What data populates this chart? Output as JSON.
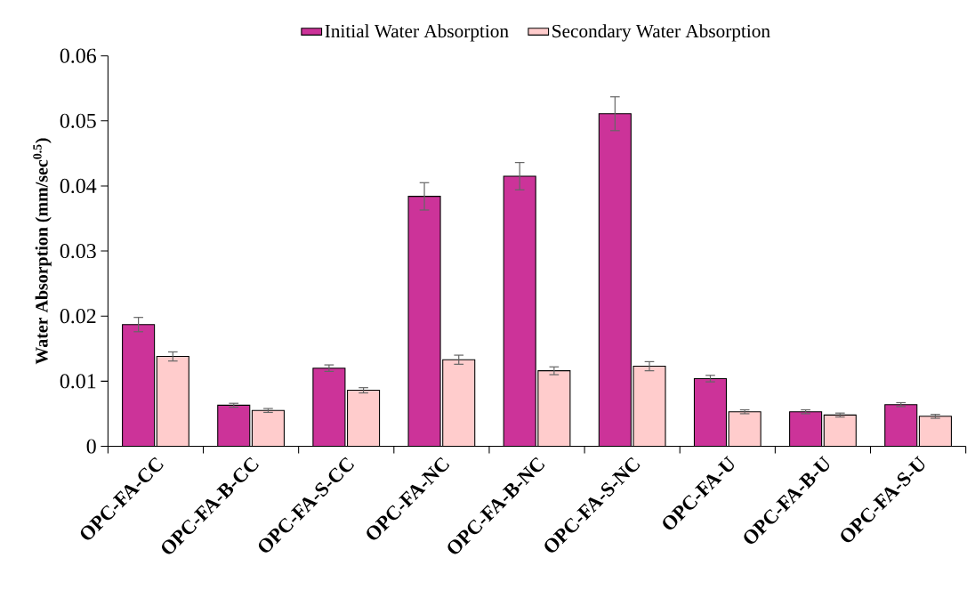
{
  "chart_data": {
    "type": "bar",
    "ylabel": "**Water Absorption (mm/sec$^{0.5}$)**",
    "categories": [
      "OPC-FA-CC",
      "OPC-FA-B-CC",
      "OPC-FA-S-CC",
      "OPC-FA-NC",
      "OPC-FA-B-NC",
      "OPC-FA-S-NC",
      "OPC-FA-U",
      "OPC-FA-B-U",
      "OPC-FA-S-U"
    ],
    "series": [
      {
        "name": "Initial Water Absorption",
        "color": "#cc3399",
        "values": [
          0.0187,
          0.0063,
          0.012,
          0.0384,
          0.0415,
          0.0511,
          0.0104,
          0.0053,
          0.0064
        ],
        "errors": [
          0.0011,
          0.0003,
          0.0005,
          0.0021,
          0.0021,
          0.0026,
          0.0005,
          0.0003,
          0.0003
        ]
      },
      {
        "name": "Secondary Water Absorption",
        "color": "#ffcccc",
        "values": [
          0.0138,
          0.0055,
          0.0086,
          0.0133,
          0.0116,
          0.0123,
          0.0053,
          0.0048,
          0.0046
        ],
        "errors": [
          0.0007,
          0.0003,
          0.0004,
          0.0007,
          0.0006,
          0.0007,
          0.0003,
          0.0003,
          0.0003
        ]
      }
    ],
    "ylim": [
      0,
      0.06
    ],
    "yticks": [
      0,
      0.01,
      0.02,
      0.03,
      0.04,
      0.05,
      0.06
    ],
    "grid": false,
    "legend": "top"
  }
}
